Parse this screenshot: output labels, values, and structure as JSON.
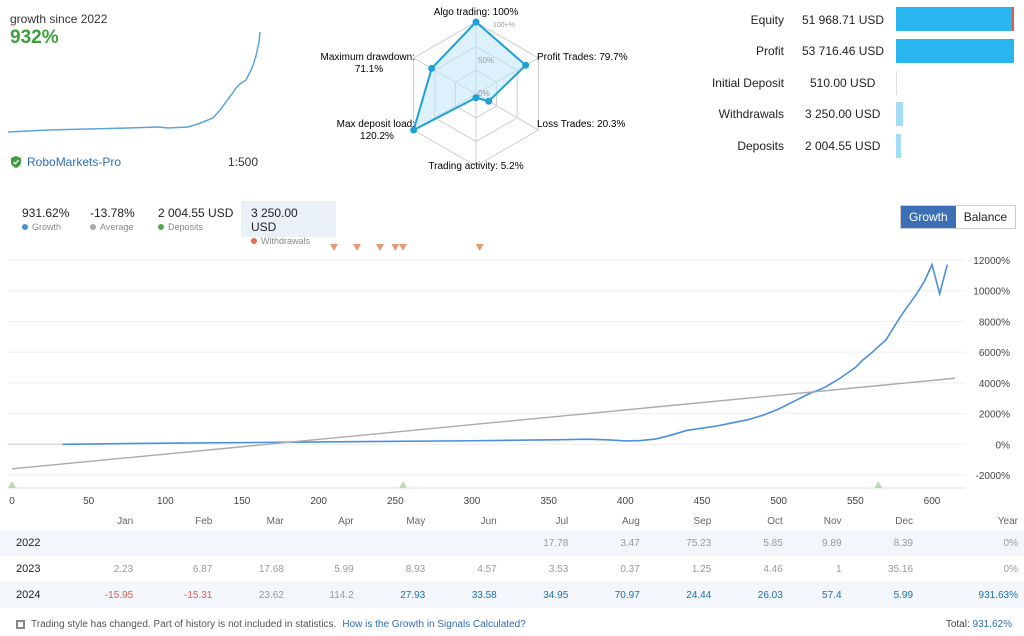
{
  "header": {
    "growth_label": "growth since 2022",
    "growth_value": "932%",
    "broker": "RoboMarkets-Pro",
    "leverage": "1:500"
  },
  "radar": {
    "algo": "Algo trading: 100%",
    "profit_trades": "Profit Trades: 79.7%",
    "loss_trades": "Loss Trades: 20.3%",
    "activity": "Trading activity: 5.2%",
    "load": "Max deposit load:",
    "load_val": "120.2%",
    "drawdown": "Maximum drawdown:",
    "drawdown_val": "71.1%",
    "scale_100": "100+%",
    "scale_50": "50%",
    "scale_0": "0%",
    "values": {
      "algo": 1.0,
      "profit": 0.797,
      "loss": 0.203,
      "activity": 0.052,
      "load": 1.0,
      "drawdown": 0.711
    }
  },
  "stats": [
    {
      "label": "Equity",
      "value": "51 968.71 USD",
      "fill": 1.0
    },
    {
      "label": "Profit",
      "value": "53 716.46 USD",
      "fill": 1.0
    },
    {
      "label": "Initial Deposit",
      "value": "510.00 USD",
      "fill": 0.0
    },
    {
      "label": "Withdrawals",
      "value": "3 250.00 USD",
      "fill": 0.06
    },
    {
      "label": "Deposits",
      "value": "2 004.55 USD",
      "fill": 0.04
    }
  ],
  "summary": [
    {
      "value": "931.62%",
      "label": "Growth",
      "color": "#4a90d9"
    },
    {
      "value": "-13.78%",
      "label": "Average",
      "color": "#aaaaaa"
    },
    {
      "value": "2 004.55 USD",
      "label": "Deposits",
      "color": "#4cae4c"
    },
    {
      "value": "3 250.00 USD",
      "label": "Withdrawals",
      "color": "#e06c4a"
    }
  ],
  "toggle": {
    "growth": "Growth",
    "balance": "Balance"
  },
  "chart_data": {
    "type": "line",
    "x_ticks": [
      0,
      50,
      100,
      150,
      200,
      250,
      300,
      350,
      400,
      450,
      500,
      550,
      600
    ],
    "y_ticks": [
      "12000%",
      "10000%",
      "8000%",
      "6000%",
      "4000%",
      "2000%",
      "0%",
      "-2000%"
    ],
    "y_tick_values": [
      12000,
      10000,
      8000,
      6000,
      4000,
      2000,
      0,
      -2000
    ],
    "xlim": [
      0,
      615
    ],
    "ylim": [
      -2000,
      12000
    ],
    "series": [
      {
        "color": "#4a90d9",
        "points": [
          [
            33,
            0
          ],
          [
            100,
            70
          ],
          [
            200,
            150
          ],
          [
            300,
            230
          ],
          [
            360,
            300
          ],
          [
            375,
            330
          ],
          [
            390,
            280
          ],
          [
            400,
            220
          ],
          [
            410,
            240
          ],
          [
            420,
            350
          ],
          [
            430,
            600
          ],
          [
            440,
            900
          ],
          [
            450,
            1050
          ],
          [
            460,
            1200
          ],
          [
            470,
            1400
          ],
          [
            480,
            1600
          ],
          [
            490,
            1900
          ],
          [
            500,
            2300
          ],
          [
            510,
            2800
          ],
          [
            520,
            3300
          ],
          [
            530,
            3700
          ],
          [
            540,
            4300
          ],
          [
            550,
            5000
          ],
          [
            555,
            5500
          ],
          [
            560,
            5900
          ],
          [
            570,
            6800
          ],
          [
            580,
            8400
          ],
          [
            590,
            9800
          ],
          [
            595,
            10600
          ],
          [
            600,
            11700
          ],
          [
            605,
            9800
          ],
          [
            610,
            11700
          ]
        ]
      },
      {
        "color": "#aaaaaa",
        "points": [
          [
            0,
            -1600
          ],
          [
            615,
            4300
          ]
        ]
      }
    ],
    "withdrawal_markers": [
      210,
      225,
      240,
      250,
      255,
      305
    ],
    "deposit_markers": [
      0,
      255,
      565
    ]
  },
  "table": {
    "headers": [
      "Jan",
      "Feb",
      "Mar",
      "Apr",
      "May",
      "Jun",
      "Jul",
      "Aug",
      "Sep",
      "Oct",
      "Nov",
      "Dec",
      "Year"
    ],
    "rows": [
      {
        "year": "2022",
        "cells": [
          "",
          "",
          "",
          "",
          "",
          "",
          "17.78",
          "3.47",
          "75.23",
          "5.85",
          "9.89",
          "8.39",
          "0%"
        ]
      },
      {
        "year": "2023",
        "cells": [
          "2.23",
          "6.87",
          "17.68",
          "5.99",
          "8.93",
          "4.57",
          "3.53",
          "0.37",
          "1.25",
          "4.46",
          "1",
          "35.16",
          "0%"
        ]
      },
      {
        "year": "2024",
        "cells": [
          "-15.95",
          "-15.31",
          "23.62",
          "114.2",
          "27.93",
          "33.58",
          "34.95",
          "70.97",
          "24.44",
          "26.03",
          "57.4",
          "5.99",
          "931.63%"
        ]
      }
    ]
  },
  "footer": {
    "note": "Trading style has changed. Part of history is not included in statistics.",
    "link": "How is the Growth in Signals Calculated?",
    "total_label": "Total:",
    "total_value": "931.62%"
  }
}
